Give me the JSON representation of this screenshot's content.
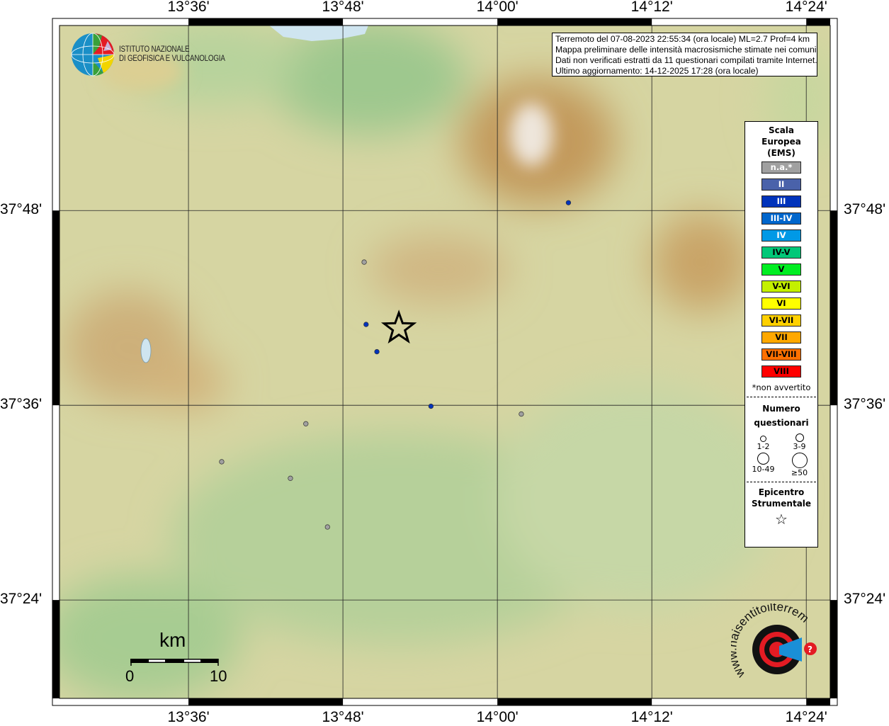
{
  "map": {
    "lon_range": [
      13.433,
      14.431
    ],
    "lat_range": [
      37.299,
      37.99
    ],
    "lon_ticks": [
      {
        "value": 13.6,
        "label": "13°36'"
      },
      {
        "value": 13.8,
        "label": "13°48'"
      },
      {
        "value": 14.0,
        "label": "14°00'"
      },
      {
        "value": 14.2,
        "label": "14°12'"
      },
      {
        "value": 14.4,
        "label": "14°24'"
      }
    ],
    "lat_ticks": [
      {
        "value": 37.8,
        "label": "37°48'"
      },
      {
        "value": 37.6,
        "label": "37°36'"
      },
      {
        "value": 37.4,
        "label": "37°24'"
      }
    ],
    "grid": true
  },
  "info": {
    "line1": "Terremoto del 07-08-2023 22:55:34 (ora locale) ML=2.7 Prof=4 km",
    "line2": "Mappa preliminare delle intensità macrosismiche stimate nei comuni",
    "line3": "Dati non verificati estratti da 11 questionari compilati tramite Internet.",
    "line4": "Ultimo aggiornamento: 14-12-2025 17:28 (ora locale)"
  },
  "logo": {
    "line1": "ISTITUTO NAZIONALE",
    "line2": "DI GEOFISICA E VULCANOLOGIA"
  },
  "hsit_logo": {
    "text": "www.haisentitoilterremoto.it"
  },
  "legend": {
    "title1": "Scala",
    "title2": "Europea",
    "title3": "(EMS)",
    "classes": [
      {
        "label": "n.a.*",
        "color": "#a0a0a0",
        "text": "#ffffff"
      },
      {
        "label": "II",
        "color": "#4a62aa",
        "text": "#ffffff"
      },
      {
        "label": "III",
        "color": "#0033bb",
        "text": "#ffffff"
      },
      {
        "label": "III-IV",
        "color": "#0066cc",
        "text": "#ffffff"
      },
      {
        "label": "IV",
        "color": "#0099e6",
        "text": "#ffffff"
      },
      {
        "label": "IV-V",
        "color": "#00c878",
        "text": "#000000"
      },
      {
        "label": "V",
        "color": "#00ee22",
        "text": "#000000"
      },
      {
        "label": "V-VI",
        "color": "#c4f000",
        "text": "#000000"
      },
      {
        "label": "VI",
        "color": "#ffff00",
        "text": "#000000"
      },
      {
        "label": "VI-VII",
        "color": "#ffd000",
        "text": "#000000"
      },
      {
        "label": "VII",
        "color": "#ffa800",
        "text": "#000000"
      },
      {
        "label": "VII-VIII",
        "color": "#ff7000",
        "text": "#000000"
      },
      {
        "label": "VIII",
        "color": "#ff0000",
        "text": "#000000"
      }
    ],
    "note": "*non avvertito",
    "count_title1": "Numero",
    "count_title2": "questionari",
    "sizes": [
      "1-2",
      "3-9",
      "10-49",
      "≥50"
    ],
    "epicenter_title1": "Epicentro",
    "epicenter_title2": "Strumentale"
  },
  "scale_bar": {
    "unit": "km",
    "start": "0",
    "end": "10"
  },
  "epicenter": {
    "lon": 13.8725,
    "lat": 37.679
  },
  "points": [
    {
      "lon": 13.8275,
      "lat": 37.747,
      "intensity": "n.a.*"
    },
    {
      "lon": 13.83,
      "lat": 37.683,
      "intensity": "III"
    },
    {
      "lon": 13.844,
      "lat": 37.655,
      "intensity": "III"
    },
    {
      "lon": 13.914,
      "lat": 37.599,
      "intensity": "III"
    },
    {
      "lon": 14.031,
      "lat": 37.591,
      "intensity": "n.a.*"
    },
    {
      "lon": 13.752,
      "lat": 37.581,
      "intensity": "n.a.*"
    },
    {
      "lon": 13.643,
      "lat": 37.542,
      "intensity": "n.a.*"
    },
    {
      "lon": 13.732,
      "lat": 37.525,
      "intensity": "n.a.*"
    },
    {
      "lon": 13.78,
      "lat": 37.475,
      "intensity": "n.a.*"
    },
    {
      "lon": 14.092,
      "lat": 37.808,
      "intensity": "III"
    }
  ]
}
